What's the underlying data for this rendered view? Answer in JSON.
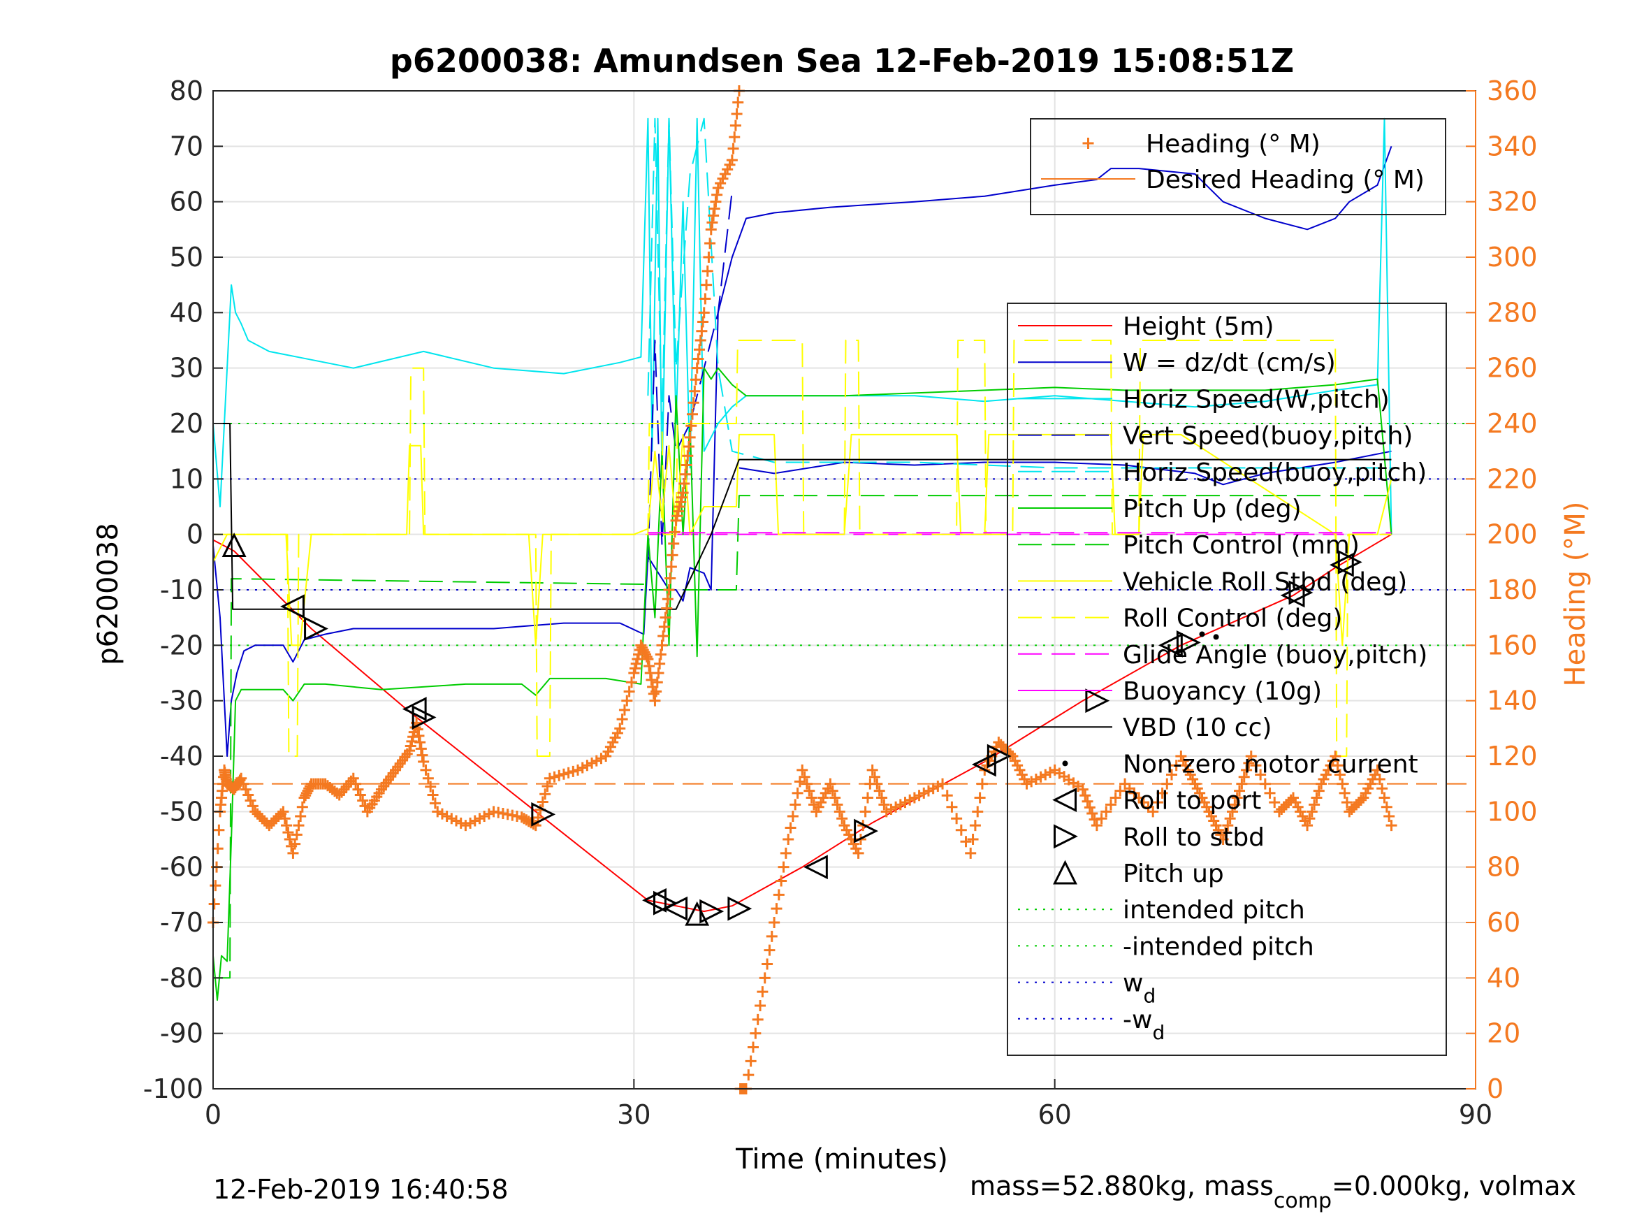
{
  "chart_data": {
    "type": "line",
    "title": "p6200038: Amundsen Sea 12-Feb-2019 15:08:51Z",
    "xlabel": "Time (minutes)",
    "ylabel_left": "p6200038",
    "ylabel_right": "Heading (°M)",
    "xlim": [
      0,
      90
    ],
    "ylim_left": [
      -100,
      80
    ],
    "ylim_right": [
      0,
      360
    ],
    "x_ticks": [
      "0",
      "30",
      "60",
      "90"
    ],
    "y_ticks_left": [
      "-100",
      "-90",
      "-80",
      "-70",
      "-60",
      "-50",
      "-40",
      "-30",
      "-20",
      "-10",
      "0",
      "10",
      "20",
      "30",
      "40",
      "50",
      "60",
      "70",
      "80"
    ],
    "y_ticks_right": [
      "0",
      "20",
      "40",
      "60",
      "80",
      "100",
      "120",
      "140",
      "160",
      "180",
      "200",
      "220",
      "240",
      "260",
      "280",
      "300",
      "320",
      "340",
      "360"
    ],
    "grid": true,
    "footer_left": "12-Feb-2019 16:40:58",
    "footer_right_parts": {
      "a": "mass=52.880kg, mass",
      "sub": "comp",
      "b": "=0.000kg, volmax"
    },
    "colors": {
      "height": "#ff0000",
      "w": "#0000cc",
      "horiz": "#00e5ee",
      "pitch": "#00cc00",
      "roll": "#ffff00",
      "glide": "#ff00ff",
      "vbd": "#000000",
      "heading": "#f47920"
    },
    "legend_heading": [
      {
        "label": "Heading (° M)",
        "style": "plus",
        "color": "#f47920"
      },
      {
        "label": "Desired Heading (° M)",
        "style": "solid",
        "color": "#f47920"
      }
    ],
    "legend_main": [
      {
        "label": "Height (5m)",
        "style": "solid",
        "color": "#ff0000"
      },
      {
        "label": "W = dz/dt (cm/s)",
        "style": "solid",
        "color": "#0000cc"
      },
      {
        "label": "Horiz Speed(W,pitch)",
        "style": "solid",
        "color": "#00e5ee"
      },
      {
        "label": "Vert Speed(buoy,pitch)",
        "style": "dash",
        "color": "#0000cc"
      },
      {
        "label": "Horiz Speed(buoy,pitch)",
        "style": "dash",
        "color": "#00e5ee"
      },
      {
        "label": "Pitch Up (deg)",
        "style": "solid",
        "color": "#00cc00"
      },
      {
        "label": "Pitch Control (mm)",
        "style": "dash",
        "color": "#00cc00"
      },
      {
        "label": "Vehicle Roll Stbd (deg)",
        "style": "solid",
        "color": "#ffff00"
      },
      {
        "label": "Roll Control (deg)",
        "style": "dash",
        "color": "#ffff00"
      },
      {
        "label": "Glide Angle (buoy,pitch)",
        "style": "dash",
        "color": "#ff00ff"
      },
      {
        "label": "Buoyancy (10g)",
        "style": "solid",
        "color": "#ff00ff"
      },
      {
        "label": "VBD (10 cc)",
        "style": "solid",
        "color": "#000000"
      },
      {
        "label": "Non-zero motor current",
        "style": "dot",
        "color": "#000000"
      },
      {
        "label": "Roll to port",
        "style": "tri-left",
        "color": "#000000"
      },
      {
        "label": "Roll to stbd",
        "style": "tri-right",
        "color": "#000000"
      },
      {
        "label": "Pitch up",
        "style": "tri-up",
        "color": "#000000"
      },
      {
        "label": "intended pitch",
        "style": "dotted",
        "color": "#00cc00"
      },
      {
        "label": "-intended pitch",
        "style": "dotted",
        "color": "#00cc00"
      },
      {
        "label": "w",
        "sub": "d",
        "style": "dotted",
        "color": "#0000cc"
      },
      {
        "label": "-w",
        "sub": "d",
        "style": "dotted",
        "color": "#0000cc"
      }
    ],
    "reference_lines": [
      {
        "name": "intended pitch",
        "y": 20,
        "color": "#00cc00"
      },
      {
        "name": "-intended pitch",
        "y": -20,
        "color": "#00cc00"
      },
      {
        "name": "w_d",
        "y": 10,
        "color": "#0000cc"
      },
      {
        "name": "-w_d",
        "y": -10,
        "color": "#0000cc"
      },
      {
        "name": "glide",
        "y": 0,
        "color": "#ff00ff"
      }
    ],
    "desired_heading": 110,
    "series": [
      {
        "name": "Height (5m)",
        "color": "#ff0000",
        "style": "solid",
        "x": [
          0,
          1.5,
          7,
          14,
          23,
          31,
          33,
          35,
          37,
          42,
          47,
          55,
          62,
          69,
          77,
          80,
          84
        ],
        "y": [
          -1,
          -3,
          -17,
          -32,
          -50,
          -66,
          -67,
          -68,
          -67,
          -60,
          -52,
          -41,
          -30,
          -20,
          -11,
          -6,
          0
        ]
      },
      {
        "name": "W = dz/dt (cm/s)",
        "color": "#0000cc",
        "style": "solid",
        "x": [
          0,
          0.5,
          1,
          1.3,
          1.7,
          2.2,
          3,
          5,
          5.7,
          6.5,
          8,
          10,
          15,
          20,
          25,
          29,
          30.7,
          31,
          31.5,
          32,
          32.5,
          33,
          33.5,
          34,
          35,
          35.5,
          36,
          37,
          38,
          40,
          44,
          50,
          55,
          60,
          63,
          64,
          66,
          70,
          72,
          75,
          78,
          80,
          81,
          83,
          84
        ],
        "y": [
          -2,
          -15,
          -40,
          -30,
          -25,
          -21,
          -20,
          -20,
          -23,
          -19,
          -18,
          -17,
          -17,
          -17,
          -16,
          -16,
          -18,
          -4,
          -6,
          -8,
          -10,
          -10,
          -12,
          -6,
          -7,
          -10,
          40,
          50,
          57,
          58,
          59,
          60,
          61,
          63,
          64,
          66,
          66,
          65,
          60,
          57,
          55,
          57,
          60,
          63,
          70
        ]
      },
      {
        "name": "W (2)",
        "color": "#0000cc",
        "style": "solid",
        "x": [
          37.5,
          40,
          45,
          50,
          55,
          60,
          65,
          70,
          72,
          75,
          80,
          84
        ],
        "y": [
          12,
          11,
          13,
          12.5,
          13,
          13,
          12.5,
          11,
          9,
          11,
          13,
          15
        ]
      },
      {
        "name": "Horiz Speed(W,pitch)",
        "color": "#00e5ee",
        "style": "solid",
        "x": [
          0,
          0.5,
          1,
          1.3,
          1.6,
          2,
          2.5,
          4,
          6,
          10,
          15,
          20,
          25,
          29,
          30.5,
          31,
          31.3,
          31.7,
          32,
          32.5,
          33,
          33.5,
          34,
          34.5,
          35,
          36,
          37,
          38,
          45,
          50,
          55,
          60,
          65,
          70,
          75,
          80,
          83,
          83.5,
          84
        ],
        "y": [
          20,
          5,
          30,
          45,
          40,
          38,
          35,
          33,
          32,
          30,
          33,
          30,
          29,
          31,
          32,
          75,
          15,
          75,
          10,
          75,
          20,
          60,
          12,
          75,
          15,
          20,
          23,
          25,
          25,
          25,
          24,
          25,
          24,
          23,
          24,
          26,
          27,
          75,
          0
        ]
      },
      {
        "name": "Vert Speed(buoy,pitch)",
        "color": "#0000cc",
        "style": "dash",
        "x": [
          31,
          31.5,
          32,
          32.5,
          33,
          34,
          35,
          36,
          37
        ],
        "y": [
          -5,
          35,
          -2,
          25,
          15,
          20,
          30,
          40,
          62
        ]
      },
      {
        "name": "Horiz Speed(buoy,pitch)",
        "color": "#00e5ee",
        "style": "dash",
        "x": [
          31,
          31.5,
          32,
          32.5,
          33,
          34,
          35,
          36,
          37,
          40,
          50,
          60,
          70,
          80,
          84
        ],
        "y": [
          25,
          75,
          20,
          75,
          30,
          65,
          75,
          30,
          15,
          13,
          13,
          12,
          12,
          12,
          12
        ]
      },
      {
        "name": "Pitch Up (deg)",
        "color": "#00cc00",
        "style": "solid",
        "x": [
          0,
          0.3,
          0.6,
          1,
          1.3,
          1.6,
          2,
          3,
          5,
          5.7,
          6.5,
          8,
          12,
          18,
          22,
          23,
          24,
          28,
          30.5,
          31,
          31.5,
          32,
          32.5,
          33,
          33.5,
          34,
          34.5,
          35,
          35.5,
          36,
          37,
          38,
          45,
          50,
          55,
          60,
          65,
          70,
          75,
          80,
          83,
          84
        ],
        "y": [
          -76,
          -84,
          -76,
          -77,
          -55,
          -30,
          -28,
          -28,
          -28,
          -30,
          -27,
          -27,
          -28,
          -27,
          -27,
          -29,
          -26,
          -26,
          -27,
          0,
          -15,
          15,
          -20,
          25,
          0,
          20,
          -22,
          30,
          28,
          30,
          27,
          25,
          25,
          25.5,
          26,
          26.5,
          26,
          26,
          26,
          27,
          28,
          0
        ]
      },
      {
        "name": "Pitch Control (mm)",
        "color": "#00cc00",
        "style": "dash",
        "x": [
          0,
          1.2,
          1.3,
          31,
          31.2,
          33,
          33.2,
          37.3,
          37.5,
          84
        ],
        "y": [
          -80,
          -80,
          -8,
          -9,
          -10,
          -10,
          -10,
          -10,
          7,
          7
        ]
      },
      {
        "name": "Vehicle Roll Stbd (deg)",
        "color": "#ffff00",
        "style": "solid",
        "x": [
          0,
          1,
          2,
          5.2,
          5.6,
          6.2,
          7,
          13.8,
          14,
          14.8,
          15,
          22.5,
          23,
          23.5,
          30,
          31,
          31.5,
          32,
          32.5,
          33,
          33.5,
          34,
          35,
          37.3,
          37.5,
          40,
          40.3,
          45,
          45.5,
          46,
          53,
          53.3,
          55,
          55.3,
          64,
          64.3,
          66,
          66.3,
          69,
          80,
          80.5,
          81,
          83,
          84
        ],
        "y": [
          -5,
          0,
          0,
          0,
          -20,
          -20,
          0,
          0,
          16,
          16,
          0,
          0,
          -20,
          0,
          0,
          1,
          15,
          3,
          16,
          1,
          18,
          0,
          5,
          5,
          18,
          18,
          0,
          0,
          18,
          18,
          18,
          0,
          0,
          18,
          18,
          0,
          0,
          18,
          18,
          0,
          -20,
          0,
          0,
          10
        ]
      },
      {
        "name": "Roll Control (deg)",
        "color": "#ffff00",
        "style": "dash",
        "x": [
          0,
          5.3,
          5.4,
          6,
          6.1,
          14,
          14.1,
          15,
          15.1,
          23,
          23.1,
          24,
          24.1,
          31,
          31.1,
          32,
          32.1,
          33,
          33.1,
          37.3,
          37.4,
          42,
          42.1,
          45,
          45.1,
          46,
          46.1,
          53,
          53.1,
          55,
          55.1,
          57,
          57.1,
          64,
          64.1,
          66,
          66.1,
          80,
          80.1,
          80.8,
          80.9,
          84
        ],
        "y": [
          0,
          0,
          -40,
          -40,
          0,
          0,
          30,
          30,
          0,
          0,
          -40,
          -40,
          0,
          0,
          20,
          20,
          0,
          0,
          20,
          20,
          35,
          35,
          0,
          0,
          35,
          35,
          0,
          0,
          35,
          35,
          0,
          0,
          35,
          35,
          0,
          0,
          35,
          35,
          -40,
          -40,
          0,
          0
        ]
      },
      {
        "name": "Glide Angle (buoy,pitch)",
        "color": "#ff00ff",
        "style": "dash",
        "x": [
          31,
          84
        ],
        "y": [
          0.3,
          0.3
        ]
      },
      {
        "name": "VBD (10 cc)",
        "color": "#000000",
        "style": "solid",
        "x": [
          0,
          1.2,
          1.4,
          33,
          35.5,
          37.5,
          84
        ],
        "y": [
          20,
          20,
          -13.5,
          -13.5,
          0,
          13.5,
          13.5
        ]
      },
      {
        "name": "Heading (° M)",
        "color": "#f47920",
        "style": "plus",
        "axis": "right",
        "x": [
          0,
          0.5,
          0.8,
          1,
          1.5,
          2,
          3,
          4,
          5,
          5.7,
          6.5,
          7,
          8,
          9,
          10,
          11,
          12,
          13,
          14,
          14.5,
          15,
          16,
          18,
          20,
          22,
          23,
          24,
          26,
          28,
          29,
          30,
          30.5,
          31,
          31.5,
          32,
          32.5,
          33,
          33.5,
          34,
          34.5,
          35,
          35.5,
          36,
          37,
          37.5,
          38,
          39,
          40,
          41,
          42,
          43,
          44,
          45,
          46,
          47,
          48,
          50,
          52,
          54,
          55,
          56,
          57,
          58,
          60,
          62,
          63,
          65,
          67,
          69,
          70,
          71,
          72,
          73,
          74,
          76,
          77,
          78,
          79,
          80,
          81,
          82,
          83,
          84
        ],
        "y": [
          60,
          100,
          115,
          110,
          108,
          112,
          100,
          95,
          100,
          85,
          105,
          110,
          110,
          106,
          112,
          100,
          108,
          115,
          122,
          132,
          118,
          100,
          95,
          100,
          98,
          95,
          112,
          115,
          120,
          130,
          150,
          160,
          155,
          140,
          160,
          180,
          205,
          215,
          235,
          260,
          280,
          310,
          325,
          335,
          360,
          0,
          30,
          60,
          90,
          115,
          100,
          110,
          95,
          85,
          115,
          100,
          105,
          110,
          85,
          115,
          125,
          120,
          110,
          115,
          108,
          95,
          110,
          100,
          120,
          110,
          100,
          90,
          105,
          120,
          100,
          105,
          95,
          110,
          120,
          100,
          105,
          115,
          95
        ]
      }
    ],
    "markers": {
      "roll_to_port": {
        "x": [
          5.7,
          14.4,
          31.5,
          33,
          43,
          55,
          68.3,
          77,
          80.5
        ],
        "y": [
          -13,
          -31.5,
          -66,
          -67.5,
          -60,
          -41.5,
          -20,
          -11,
          -5.5
        ]
      },
      "roll_to_stbd": {
        "x": [
          7.3,
          15,
          23.5,
          32.2,
          35.5,
          37.5,
          46.5,
          56,
          63,
          69.5,
          77.5,
          81
        ],
        "y": [
          -17,
          -33,
          -50.5,
          -66.5,
          -68,
          -67.5,
          -53.5,
          -40,
          -30,
          -19.5,
          -10.5,
          -5
        ]
      },
      "pitch_up": {
        "x": [
          1.5,
          34.5
        ],
        "y": [
          -2,
          -68.5
        ]
      },
      "motor_current": {
        "x": [
          70.5,
          71.5
        ],
        "y": [
          -18,
          -18.5
        ]
      }
    }
  }
}
